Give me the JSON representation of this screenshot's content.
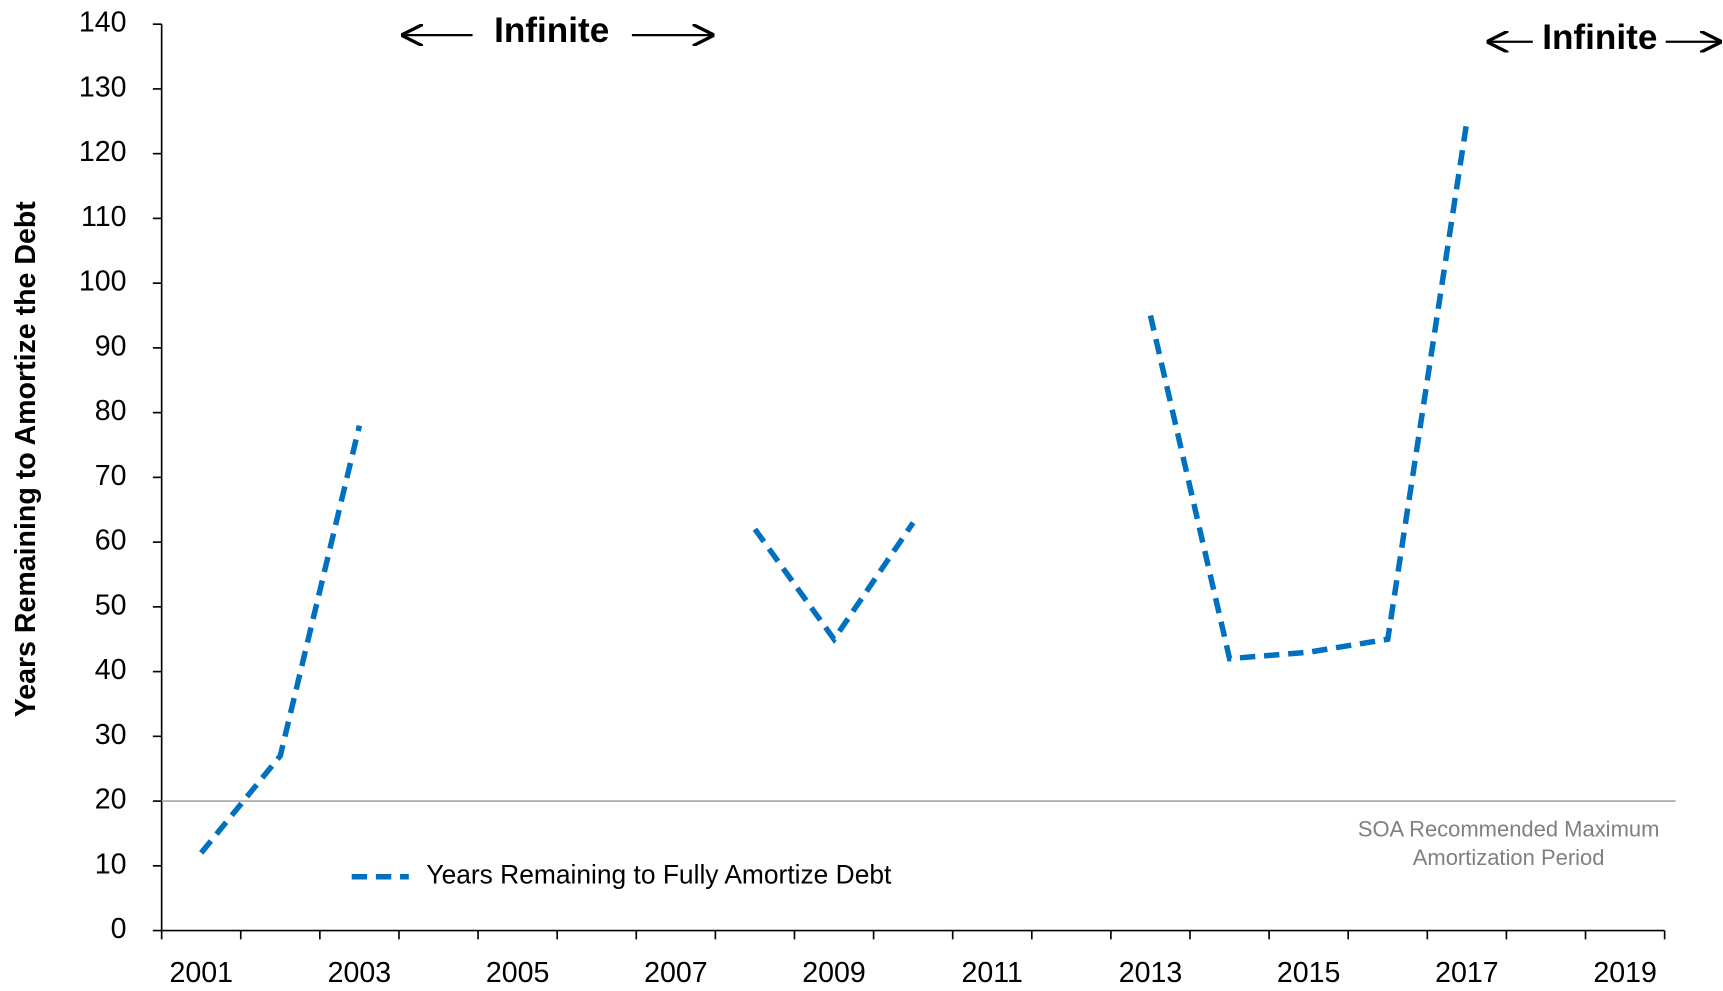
{
  "chart_data": {
    "type": "line",
    "y_label": "Years Remaining to Amortize the Debt",
    "categories": [
      "2001",
      null,
      "2003",
      null,
      "2005",
      null,
      "2007",
      null,
      "2009",
      null,
      "2011",
      null,
      "2013",
      null,
      "2015",
      null,
      "2017",
      null,
      "2019"
    ],
    "series": [
      {
        "name": "Years Remaining to Fully Amortize Debt",
        "color": "#0070c0",
        "values": [
          12,
          27,
          78,
          null,
          null,
          null,
          null,
          62,
          45,
          63,
          null,
          null,
          95,
          42,
          43,
          45,
          125,
          null,
          null
        ]
      }
    ],
    "ylim": [
      0,
      140
    ],
    "yticks": [
      0,
      10,
      20,
      30,
      40,
      50,
      60,
      70,
      80,
      90,
      100,
      110,
      120,
      130,
      140
    ],
    "reference_line": {
      "value": 20,
      "color": "#a6a6a6",
      "label": [
        "SOA Recommended Maximum",
        "Amortization Period"
      ]
    },
    "annotations": [
      {
        "text": "Infinite"
      },
      {
        "text": "Infinite"
      }
    ],
    "legend": "lower left",
    "grid": false
  }
}
